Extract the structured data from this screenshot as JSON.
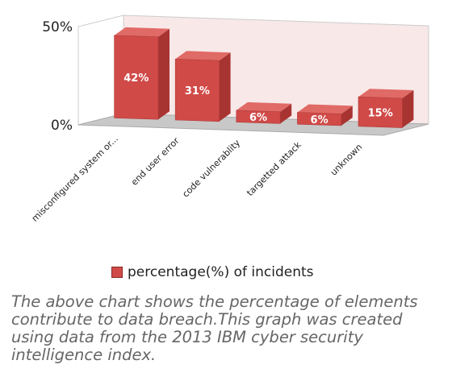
{
  "chart_data": {
    "type": "bar",
    "categories": [
      "misconfigured system or...",
      "end user error",
      "code vulnerablity",
      "targetted attack",
      "unknown"
    ],
    "values": [
      42,
      31,
      6,
      6,
      15
    ],
    "data_labels": [
      "42%",
      "31%",
      "6%",
      "6%",
      "15%"
    ],
    "series": [
      {
        "name": "percentage(%) of incidents",
        "values": [
          42,
          31,
          6,
          6,
          15
        ]
      }
    ],
    "y_ticks": [
      "0%",
      "50%"
    ],
    "ylim": [
      0,
      50
    ],
    "legend_position": "bottom",
    "grid": false,
    "style": "3d-column"
  },
  "caption": "The above chart shows the percentage of elements contribute to data breach.This graph was created using data from the 2013 IBM cyber security intelligence index.",
  "colors": {
    "bar_front": "#d04a48",
    "bar_side": "#a83432",
    "bar_top": "#e06a66",
    "floor": "#c8c8c8",
    "back_wall": "#f8e8e8"
  }
}
